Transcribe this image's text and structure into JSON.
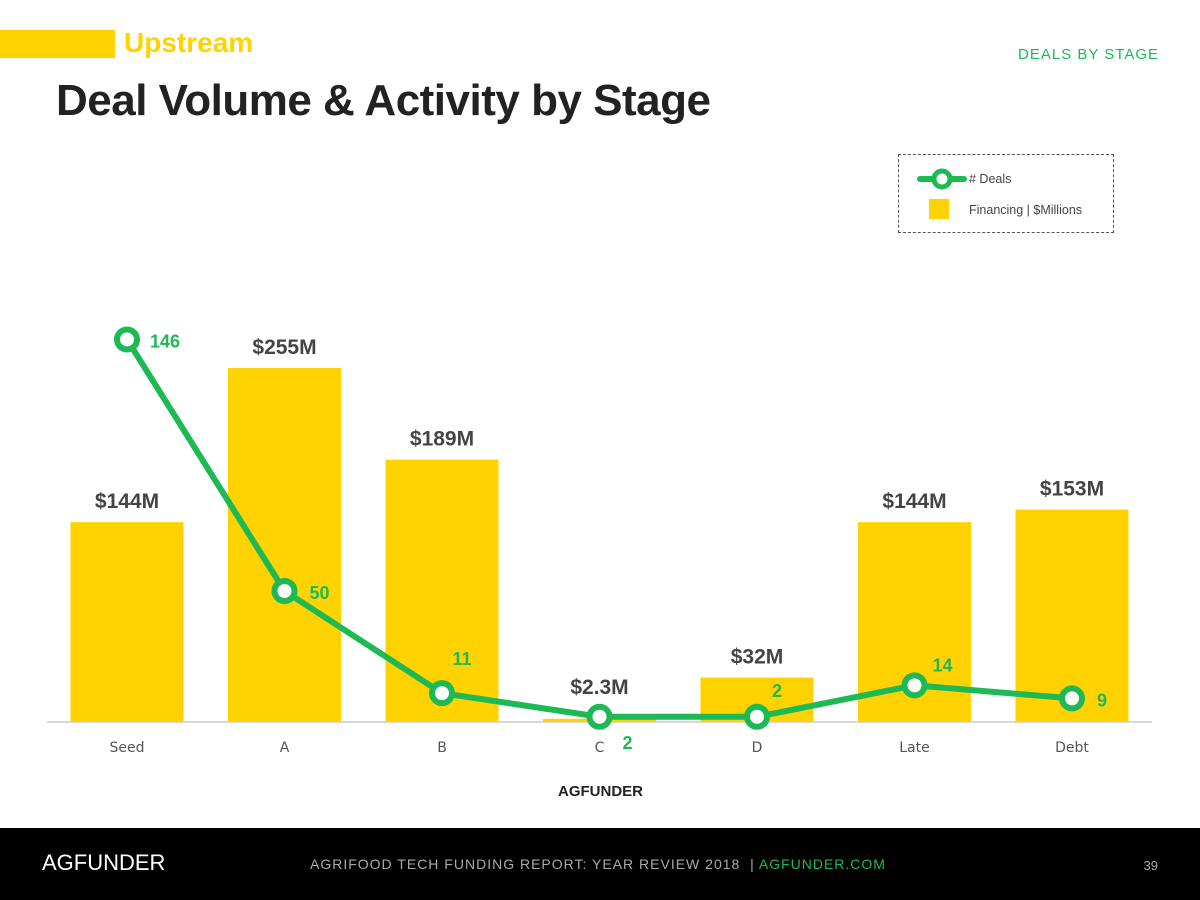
{
  "header": {
    "section": "Upstream",
    "title": "Deal Volume & Activity by Stage",
    "tag": "DEALS BY STAGE"
  },
  "legend": {
    "line": "# Deals",
    "bar": "Financing | $Millions"
  },
  "footer": {
    "logo": "AGFUNDER",
    "report": "AGRIFOOD TECH FUNDING REPORT: YEAR REVIEW 2018",
    "sep": "|",
    "site": "AGFUNDER.COM",
    "page": "39"
  },
  "chart_logo": "AGFUNDER",
  "colors": {
    "bar": "#FFD200",
    "line": "#1DB954"
  },
  "chart_data": {
    "type": "bar",
    "title": "Deal Volume & Activity by Stage",
    "categories": [
      "Seed",
      "A",
      "B",
      "C",
      "D",
      "Late",
      "Debt"
    ],
    "series": [
      {
        "name": "Financing | $Millions",
        "type": "bar",
        "values": [
          144,
          255,
          189,
          2.3,
          32,
          144,
          153
        ],
        "labels": [
          "$144M",
          "$255M",
          "$189M",
          "$2.3M",
          "$32M",
          "$144M",
          "$153M"
        ]
      },
      {
        "name": "# Deals",
        "type": "line",
        "values": [
          146,
          50,
          11,
          2,
          2,
          14,
          9
        ]
      }
    ],
    "legend": "top-right",
    "grid": false
  }
}
